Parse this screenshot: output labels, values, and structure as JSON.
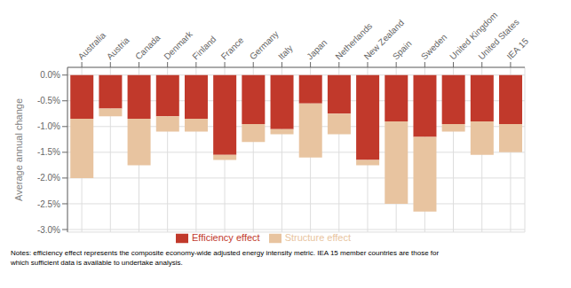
{
  "chart_data": {
    "type": "bar",
    "stacked": true,
    "grid": true,
    "legend": "bottom",
    "ylabel": "Average annual change",
    "categories": [
      "Australia",
      "Austria",
      "Canada",
      "Denmark",
      "Finland",
      "France",
      "Germany",
      "Italy",
      "Japan",
      "Netherlands",
      "New Zealand",
      "Spain",
      "Sweden",
      "United Kingdom",
      "United States",
      "IEA 15"
    ],
    "series": [
      {
        "name": "Efficiency effect",
        "color": "#C1392B",
        "values": [
          -0.85,
          -0.65,
          -0.85,
          -0.8,
          -0.85,
          -1.55,
          -0.95,
          -1.05,
          -0.55,
          -0.75,
          -1.65,
          -0.9,
          -1.2,
          -0.95,
          -0.9,
          -0.95
        ]
      },
      {
        "name": "Structure effect",
        "color": "#E8C4A0",
        "values": [
          -1.15,
          -0.15,
          -0.9,
          -0.3,
          -0.25,
          -0.1,
          -0.35,
          -0.1,
          -1.05,
          -0.4,
          -0.1,
          -1.6,
          -1.45,
          -0.15,
          -0.65,
          -0.55
        ]
      }
    ],
    "ylim": [
      -3.05,
      0.15
    ],
    "yticks": [
      {
        "value": 0.0,
        "label": "0.0%"
      },
      {
        "value": -0.5,
        "label": "-0.5%"
      },
      {
        "value": -1.0,
        "label": "-1.0%"
      },
      {
        "value": -1.5,
        "label": "-1.5%"
      },
      {
        "value": -2.0,
        "label": "-2.0%"
      },
      {
        "value": -2.5,
        "label": "-2.5%"
      },
      {
        "value": -3.0,
        "label": "-3.0%"
      }
    ],
    "annotations": [
      "Notes: efficiency effect represents the composite economy-wide adjusted energy intensity metric. IEA 15 member countries are those for",
      "which sufficient data is available to undertake analysis."
    ]
  }
}
